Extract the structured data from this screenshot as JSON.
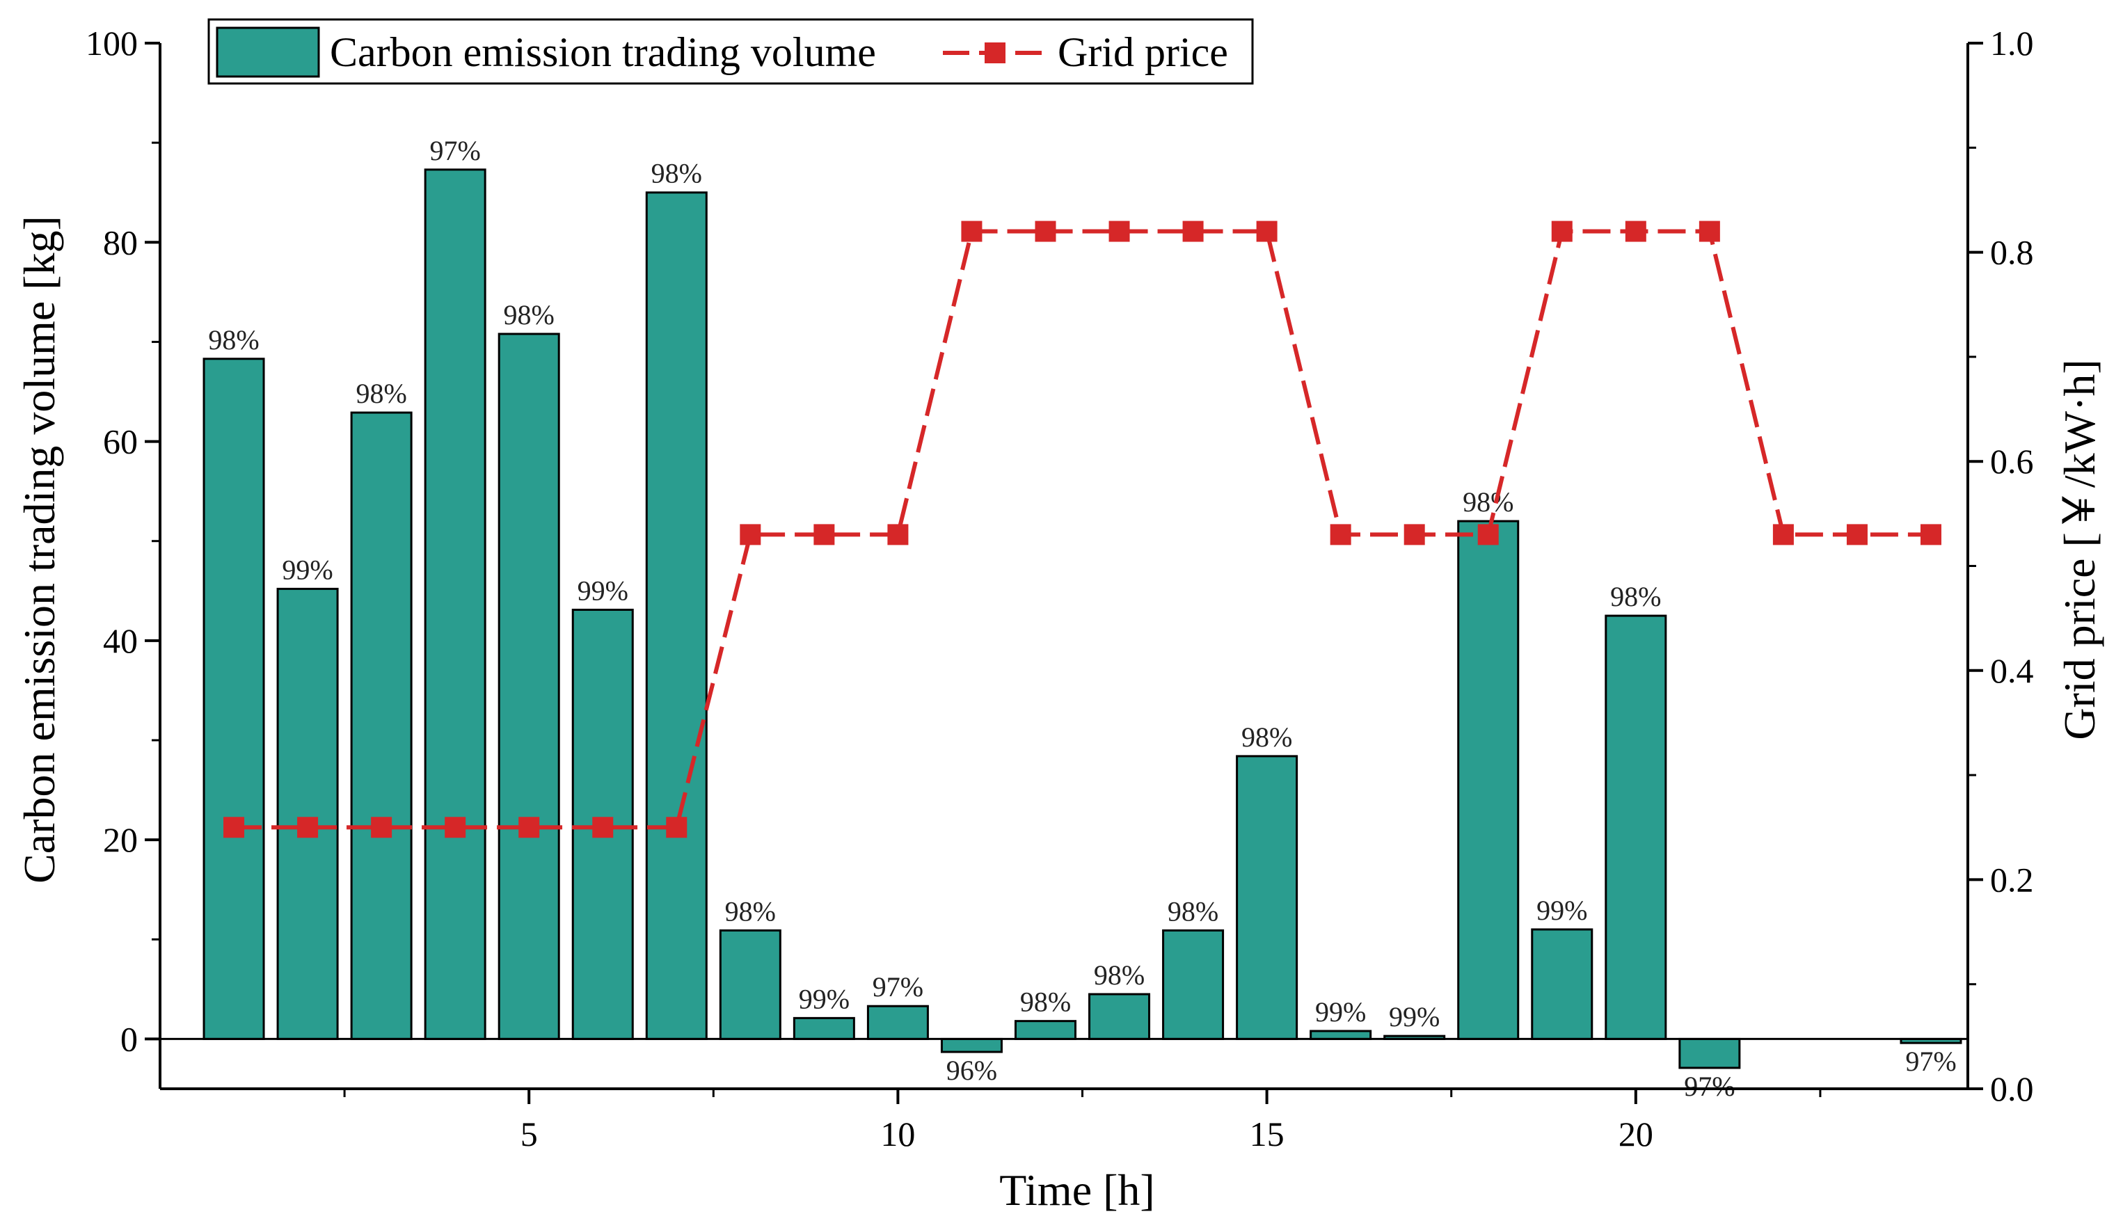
{
  "chart_data": {
    "type": "bar",
    "x": [
      1,
      2,
      3,
      4,
      5,
      6,
      7,
      8,
      9,
      10,
      11,
      12,
      13,
      14,
      15,
      16,
      17,
      18,
      19,
      20,
      21,
      22,
      23,
      24
    ],
    "series": [
      {
        "name": "Carbon emission trading volume",
        "type": "bar",
        "axis": "left",
        "color": "#2A9D8F",
        "values": [
          68.3,
          45.2,
          62.9,
          87.3,
          70.8,
          43.1,
          85.0,
          10.9,
          2.1,
          3.3,
          -1.3,
          1.8,
          4.5,
          10.9,
          28.4,
          0.8,
          0.3,
          52.0,
          11.0,
          42.5,
          -2.9,
          0,
          0,
          -0.4
        ],
        "labels": [
          "98%",
          "99%",
          "98%",
          "97%",
          "98%",
          "99%",
          "98%",
          "98%",
          "99%",
          "97%",
          "96%",
          "98%",
          "98%",
          "98%",
          "98%",
          "99%",
          "99%",
          "98%",
          "99%",
          "98%",
          "97%",
          "",
          "",
          "97%"
        ]
      },
      {
        "name": "Grid price",
        "type": "line",
        "axis": "right",
        "color": "#D62728",
        "marker": "square",
        "values": [
          0.25,
          0.25,
          0.25,
          0.25,
          0.25,
          0.25,
          0.25,
          0.53,
          0.53,
          0.53,
          0.82,
          0.82,
          0.82,
          0.82,
          0.82,
          0.53,
          0.53,
          0.53,
          0.82,
          0.82,
          0.82,
          0.53,
          0.53,
          0.53
        ]
      }
    ],
    "xlabel": "Time [h]",
    "ylabel": "Carbon emission trading volume [kg]",
    "y2label": "Grid price [￥/kW·h]",
    "xlim": [
      0,
      24.5
    ],
    "ylim": [
      -5,
      100
    ],
    "y2lim": [
      0,
      1.0
    ],
    "xticks": [
      5,
      10,
      15,
      20
    ],
    "xticks_minor": [
      2.5,
      7.5,
      12.5,
      17.5,
      22.5
    ],
    "yticks": [
      0,
      20,
      40,
      60,
      80,
      100
    ],
    "y2ticks": [
      0.0,
      0.2,
      0.4,
      0.6,
      0.8,
      1.0
    ],
    "y2tick_labels": [
      "0.0",
      "0.2",
      "0.4",
      "0.6",
      "0.8",
      "1.0"
    ],
    "legend": "top-left",
    "grid": false
  }
}
